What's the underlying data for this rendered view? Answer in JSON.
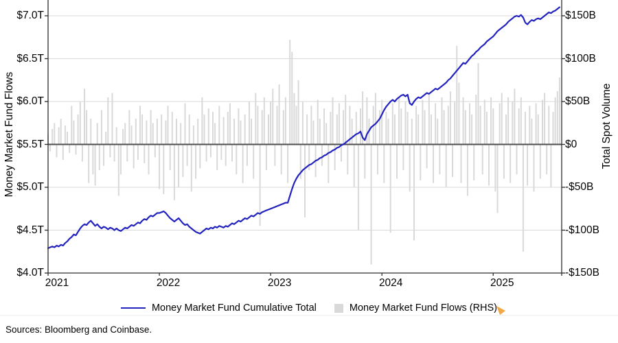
{
  "figure": {
    "source_note": "Sources: Bloomberg and Coinbase.",
    "cursor_artifact_color": "#f2a33c"
  },
  "chart_data": {
    "type": "line+bar",
    "title": "",
    "left_axis": {
      "label": "Money Market Fund Flows",
      "ticks": [
        "$7.0T",
        "$6.5T",
        "$6.0T",
        "$5.5T",
        "$5.0T",
        "$4.5T",
        "$4.0T"
      ],
      "tick_values": [
        7.0,
        6.5,
        6.0,
        5.5,
        5.0,
        4.5,
        4.0
      ],
      "ylim": [
        4.0,
        7.18
      ]
    },
    "right_axis": {
      "label": "Total Spot Volume",
      "ticks": [
        "$150B",
        "$100B",
        "$50B",
        "$0",
        "-$50B",
        "-$100B",
        "-$150B"
      ],
      "tick_values": [
        150,
        100,
        50,
        0,
        -50,
        -100,
        -150
      ],
      "ylim": [
        -150,
        153.5
      ]
    },
    "x_axis": {
      "ticks": [
        "2021",
        "2022",
        "2023",
        "2024",
        "2025"
      ],
      "start_year": 2021,
      "points_per_year": 52,
      "x_range": [
        2021.0,
        2025.6
      ],
      "grid": false
    },
    "colors": {
      "line": "#2222bf",
      "bar": "#d9d9d9",
      "grid": "#d9d9d9",
      "zero_line": "#4d4d4d",
      "axis": "#2b2b2b"
    },
    "series": [
      {
        "name": "Money Market Fund Cumulative Total",
        "legend_label": "Money Market Fund Cumulative Total",
        "type": "line",
        "axis": "left",
        "unit": "$T",
        "color": "#2222bf",
        "frequency": "weekly",
        "values": [
          4.29,
          4.3,
          4.31,
          4.3,
          4.32,
          4.31,
          4.33,
          4.32,
          4.35,
          4.37,
          4.4,
          4.42,
          4.45,
          4.44,
          4.48,
          4.52,
          4.55,
          4.57,
          4.56,
          4.59,
          4.61,
          4.58,
          4.55,
          4.57,
          4.54,
          4.52,
          4.54,
          4.53,
          4.51,
          4.53,
          4.52,
          4.5,
          4.52,
          4.5,
          4.49,
          4.51,
          4.53,
          4.52,
          4.54,
          4.56,
          4.55,
          4.57,
          4.59,
          4.58,
          4.61,
          4.63,
          4.62,
          4.65,
          4.67,
          4.66,
          4.68,
          4.7,
          4.7,
          4.71,
          4.72,
          4.7,
          4.67,
          4.64,
          4.62,
          4.6,
          4.62,
          4.64,
          4.61,
          4.58,
          4.56,
          4.57,
          4.54,
          4.52,
          4.5,
          4.48,
          4.47,
          4.46,
          4.48,
          4.5,
          4.52,
          4.51,
          4.53,
          4.52,
          4.54,
          4.53,
          4.55,
          4.54,
          4.53,
          4.55,
          4.54,
          4.56,
          4.58,
          4.57,
          4.59,
          4.61,
          4.6,
          4.62,
          4.64,
          4.63,
          4.65,
          4.67,
          4.66,
          4.68,
          4.7,
          4.69,
          4.71,
          4.72,
          4.73,
          4.74,
          4.75,
          4.76,
          4.77,
          4.78,
          4.79,
          4.8,
          4.81,
          4.82,
          4.82,
          4.9,
          4.98,
          5.05,
          5.1,
          5.14,
          5.17,
          5.2,
          5.22,
          5.24,
          5.26,
          5.27,
          5.29,
          5.31,
          5.32,
          5.34,
          5.35,
          5.37,
          5.38,
          5.4,
          5.41,
          5.43,
          5.44,
          5.46,
          5.47,
          5.49,
          5.5,
          5.52,
          5.54,
          5.56,
          5.58,
          5.6,
          5.62,
          5.63,
          5.65,
          5.58,
          5.55,
          5.62,
          5.66,
          5.7,
          5.72,
          5.74,
          5.77,
          5.8,
          5.85,
          5.9,
          5.94,
          5.97,
          6.0,
          6.02,
          6.0,
          6.03,
          6.05,
          6.07,
          6.08,
          6.06,
          6.08,
          5.98,
          5.96,
          6.0,
          6.03,
          6.05,
          6.04,
          6.06,
          6.08,
          6.1,
          6.09,
          6.11,
          6.13,
          6.15,
          6.14,
          6.16,
          6.18,
          6.2,
          6.22,
          6.25,
          6.27,
          6.3,
          6.33,
          6.36,
          6.39,
          6.42,
          6.45,
          6.44,
          6.47,
          6.5,
          6.53,
          6.55,
          6.58,
          6.6,
          6.63,
          6.65,
          6.67,
          6.7,
          6.72,
          6.74,
          6.76,
          6.79,
          6.82,
          6.84,
          6.86,
          6.88,
          6.9,
          6.93,
          6.95,
          6.97,
          6.99,
          7.0,
          6.99,
          7.01,
          6.98,
          6.92,
          6.9,
          6.93,
          6.95,
          6.94,
          6.96,
          6.97,
          6.96,
          6.98,
          7.0,
          7.02,
          7.04,
          7.03,
          7.05,
          7.06,
          7.08,
          7.1
        ]
      },
      {
        "name": "Money Market Fund Flows",
        "legend_label": "Money Market Fund Flows (RHS)",
        "type": "bar",
        "axis": "right",
        "unit": "$B",
        "color": "#d9d9d9",
        "frequency": "weekly",
        "values": [
          12,
          -8,
          18,
          25,
          -15,
          20,
          30,
          -18,
          22,
          15,
          -10,
          45,
          28,
          -12,
          35,
          50,
          -20,
          65,
          40,
          -45,
          30,
          -35,
          -48,
          25,
          -30,
          40,
          -25,
          15,
          55,
          -15,
          60,
          -20,
          20,
          -60,
          -35,
          18,
          25,
          -20,
          40,
          22,
          -28,
          30,
          -18,
          45,
          35,
          -22,
          28,
          -35,
          40,
          25,
          -15,
          30,
          -52,
          35,
          -58,
          28,
          45,
          -30,
          38,
          -65,
          30,
          -50,
          25,
          -38,
          48,
          -25,
          35,
          -55,
          22,
          -40,
          30,
          -28,
          55,
          35,
          -20,
          42,
          -15,
          38,
          25,
          -30,
          45,
          -18,
          32,
          -25,
          38,
          48,
          -20,
          30,
          -35,
          42,
          28,
          -45,
          35,
          -25,
          50,
          30,
          -40,
          60,
          45,
          -95,
          40,
          55,
          -30,
          35,
          50,
          65,
          -25,
          45,
          70,
          -35,
          40,
          55,
          -45,
          122,
          108,
          60,
          45,
          75,
          -40,
          50,
          -85,
          35,
          -30,
          45,
          28,
          -38,
          52,
          30,
          -25,
          42,
          25,
          -45,
          38,
          55,
          -30,
          35,
          48,
          -20,
          40,
          58,
          -35,
          45,
          30,
          -50,
          38,
          -100,
          42,
          62,
          -40,
          55,
          30,
          -140,
          45,
          60,
          -35,
          40,
          52,
          -45,
          38,
          30,
          -103,
          48,
          35,
          -40,
          55,
          42,
          -30,
          50,
          38,
          -55,
          30,
          -112,
          45,
          35,
          -42,
          52,
          40,
          -28,
          58,
          35,
          -45,
          48,
          30,
          -35,
          55,
          40,
          -50,
          45,
          62,
          -38,
          50,
          115,
          72,
          -45,
          55,
          40,
          -60,
          48,
          35,
          -42,
          58,
          95,
          45,
          -35,
          52,
          38,
          -48,
          55,
          42,
          -55,
          -80,
          48,
          60,
          -40,
          35,
          55,
          -45,
          50,
          65,
          -35,
          42,
          55,
          -125,
          38,
          -48,
          45,
          30,
          -55,
          48,
          35,
          -40,
          52,
          60,
          -35,
          45,
          -50,
          38,
          55,
          62,
          78
        ]
      }
    ]
  }
}
